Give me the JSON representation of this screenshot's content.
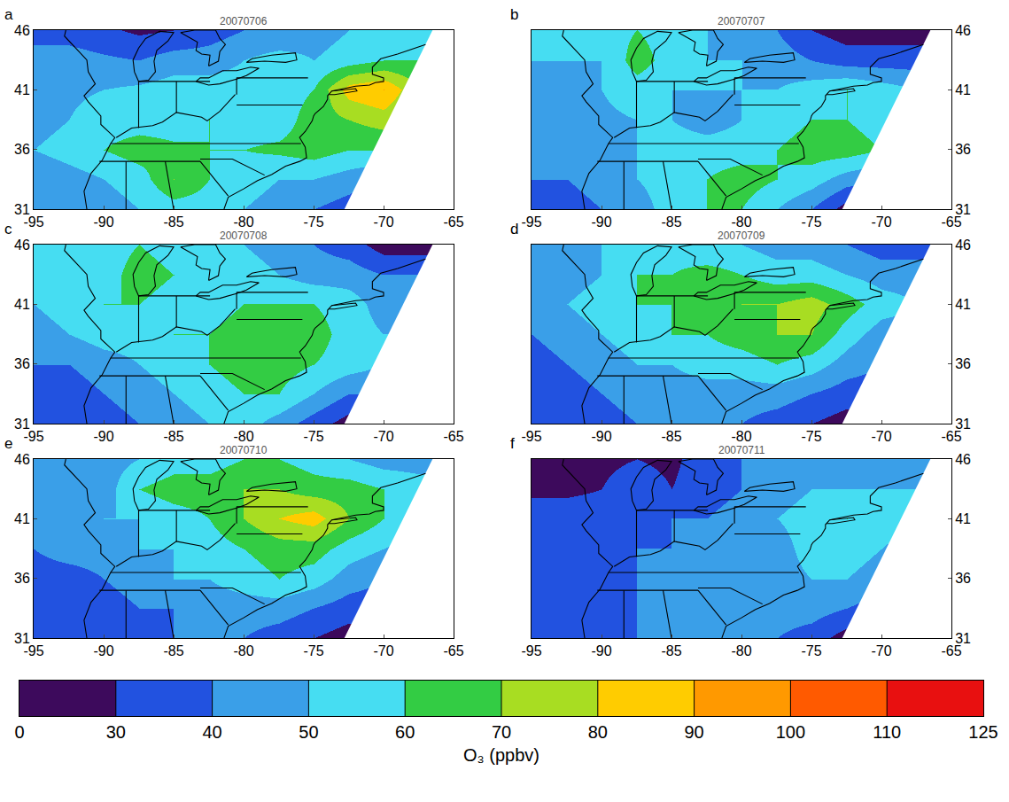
{
  "chart_data": {
    "type": "heatmap",
    "x": [
      -95,
      -92.5,
      -90,
      -87.5,
      -85,
      -82.5,
      -80,
      -77.5,
      -75,
      -72.5,
      -70,
      -67.5,
      -65
    ],
    "y": [
      31,
      33.5,
      36,
      38.5,
      41,
      43.5,
      46
    ],
    "xlim": [
      -95,
      -65
    ],
    "ylim": [
      31,
      46
    ],
    "xticks": [
      -95,
      -90,
      -85,
      -80,
      -75,
      -70,
      -65
    ],
    "yticks": [
      31,
      36,
      41,
      46
    ],
    "panels": [
      {
        "label": "a",
        "title": "20070706",
        "cells": [
          [
            40,
            42,
            45,
            50,
            55,
            55,
            50,
            45,
            40,
            35,
            25,
            25,
            25
          ],
          [
            40,
            45,
            50,
            55,
            70,
            60,
            55,
            50,
            50,
            45,
            40,
            40,
            40
          ],
          [
            50,
            55,
            60,
            65,
            62,
            60,
            60,
            62,
            65,
            60,
            60,
            55,
            50
          ],
          [
            45,
            50,
            55,
            55,
            55,
            60,
            55,
            55,
            65,
            70,
            75,
            65,
            60
          ],
          [
            45,
            48,
            50,
            52,
            55,
            55,
            55,
            55,
            60,
            85,
            90,
            70,
            65
          ],
          [
            45,
            45,
            42,
            40,
            45,
            45,
            50,
            55,
            50,
            55,
            60,
            60,
            60
          ],
          [
            35,
            35,
            32,
            28,
            30,
            35,
            40,
            40,
            45,
            50,
            55,
            55,
            55
          ]
        ]
      },
      {
        "label": "b",
        "title": "20070707",
        "cells": [
          [
            30,
            35,
            40,
            45,
            55,
            60,
            60,
            50,
            40,
            25,
            25,
            25,
            25
          ],
          [
            40,
            40,
            45,
            50,
            55,
            60,
            65,
            60,
            55,
            45,
            40,
            40,
            40
          ],
          [
            40,
            45,
            45,
            50,
            55,
            55,
            55,
            60,
            65,
            65,
            60,
            55,
            55
          ],
          [
            45,
            45,
            48,
            50,
            50,
            45,
            50,
            55,
            60,
            60,
            55,
            55,
            55
          ],
          [
            45,
            48,
            50,
            55,
            50,
            50,
            50,
            50,
            55,
            60,
            55,
            50,
            50
          ],
          [
            50,
            50,
            50,
            65,
            55,
            50,
            50,
            45,
            40,
            35,
            35,
            35,
            35
          ],
          [
            50,
            50,
            55,
            60,
            55,
            50,
            45,
            40,
            30,
            25,
            25,
            25,
            25
          ]
        ]
      },
      {
        "label": "c",
        "title": "20070708",
        "cells": [
          [
            35,
            35,
            35,
            40,
            45,
            50,
            55,
            45,
            35,
            25,
            25,
            25,
            25
          ],
          [
            35,
            35,
            40,
            45,
            50,
            55,
            60,
            60,
            50,
            40,
            40,
            40,
            40
          ],
          [
            40,
            40,
            45,
            50,
            55,
            60,
            65,
            65,
            60,
            55,
            50,
            50,
            50
          ],
          [
            45,
            50,
            55,
            55,
            60,
            60,
            65,
            60,
            65,
            55,
            50,
            50,
            50
          ],
          [
            50,
            55,
            60,
            60,
            55,
            55,
            60,
            60,
            60,
            55,
            45,
            45,
            45
          ],
          [
            50,
            50,
            55,
            65,
            60,
            55,
            55,
            50,
            45,
            45,
            40,
            40,
            40
          ],
          [
            50,
            50,
            55,
            60,
            55,
            50,
            50,
            45,
            40,
            35,
            25,
            25,
            25
          ]
        ]
      },
      {
        "label": "d",
        "title": "20070709",
        "cells": [
          [
            35,
            35,
            35,
            40,
            40,
            40,
            40,
            35,
            30,
            25,
            25,
            25,
            25
          ],
          [
            35,
            35,
            40,
            45,
            45,
            45,
            45,
            45,
            40,
            35,
            35,
            35,
            35
          ],
          [
            35,
            40,
            45,
            50,
            50,
            55,
            55,
            60,
            55,
            45,
            40,
            40,
            40
          ],
          [
            40,
            45,
            50,
            55,
            60,
            60,
            65,
            70,
            70,
            55,
            45,
            45,
            45
          ],
          [
            45,
            50,
            55,
            60,
            60,
            65,
            70,
            70,
            75,
            65,
            55,
            50,
            50
          ],
          [
            45,
            45,
            50,
            60,
            60,
            65,
            60,
            55,
            55,
            50,
            45,
            45,
            45
          ],
          [
            45,
            45,
            50,
            55,
            55,
            50,
            50,
            45,
            45,
            40,
            35,
            35,
            35
          ]
        ]
      },
      {
        "label": "e",
        "title": "20070710",
        "cells": [
          [
            35,
            35,
            35,
            35,
            40,
            40,
            40,
            35,
            30,
            25,
            25,
            25,
            25
          ],
          [
            35,
            35,
            35,
            40,
            40,
            45,
            45,
            45,
            40,
            35,
            35,
            35,
            35
          ],
          [
            35,
            35,
            40,
            45,
            50,
            50,
            55,
            60,
            55,
            45,
            40,
            40,
            40
          ],
          [
            40,
            45,
            45,
            50,
            50,
            55,
            60,
            65,
            65,
            55,
            50,
            45,
            45
          ],
          [
            45,
            45,
            50,
            50,
            55,
            60,
            70,
            80,
            85,
            70,
            60,
            55,
            55
          ],
          [
            45,
            45,
            45,
            60,
            65,
            65,
            70,
            70,
            65,
            65,
            60,
            55,
            55
          ],
          [
            40,
            40,
            45,
            50,
            55,
            55,
            60,
            60,
            55,
            50,
            45,
            45,
            45
          ]
        ]
      },
      {
        "label": "f",
        "title": "20070711",
        "cells": [
          [
            35,
            35,
            38,
            40,
            40,
            40,
            40,
            40,
            35,
            25,
            25,
            25,
            25
          ],
          [
            35,
            35,
            38,
            40,
            45,
            45,
            45,
            45,
            45,
            40,
            35,
            35,
            35
          ],
          [
            35,
            35,
            38,
            40,
            42,
            45,
            45,
            45,
            50,
            50,
            45,
            45,
            45
          ],
          [
            35,
            35,
            38,
            40,
            40,
            42,
            45,
            45,
            55,
            55,
            50,
            45,
            45
          ],
          [
            35,
            35,
            35,
            38,
            40,
            40,
            45,
            50,
            55,
            60,
            55,
            50,
            50
          ],
          [
            28,
            28,
            30,
            35,
            30,
            35,
            40,
            45,
            50,
            50,
            50,
            50,
            50
          ],
          [
            25,
            25,
            28,
            30,
            28,
            35,
            40,
            45,
            45,
            45,
            45,
            45,
            45
          ]
        ]
      }
    ],
    "domain_edge": {
      "lon": [
        -72.8,
        -66.5
      ],
      "lat": [
        31,
        46
      ]
    },
    "colorbar": {
      "levels": [
        0,
        30,
        40,
        50,
        60,
        70,
        80,
        90,
        100,
        110,
        125
      ],
      "colors": [
        "#3d0a5c",
        "#2252e0",
        "#3a9fe8",
        "#46ddf2",
        "#33cc44",
        "#a8dd22",
        "#ffcc00",
        "#ff9900",
        "#ff5a00",
        "#e81010"
      ],
      "label": "O₃ (ppbv)"
    },
    "map_lines": [
      {
        "lon": [
          -81.4,
          -81.1,
          -80,
          -79,
          -78,
          -77,
          -76,
          -75.5,
          -75.6,
          -76,
          -75.6,
          -75.1,
          -75,
          -74.9,
          -74.3,
          -74,
          -74,
          -73.7,
          -72,
          -71,
          -70.6,
          -70,
          -70,
          -70.8,
          -70.8,
          -70.2,
          -69,
          -68,
          -67
        ],
        "lat": [
          31,
          32,
          32.7,
          33.4,
          33.9,
          34.6,
          35,
          35.3,
          36.2,
          37,
          37.5,
          38.4,
          38.8,
          39,
          39.6,
          40.2,
          40.5,
          40.9,
          41.3,
          41.4,
          41.6,
          41.7,
          42,
          42.3,
          42.9,
          43.6,
          44,
          44.4,
          44.8
        ]
      },
      {
        "lon": [
          -73.7,
          -72,
          -71.9,
          -73.5,
          -73.9
        ],
        "lat": [
          40.9,
          41.1,
          40.9,
          40.6,
          40.6
        ]
      },
      {
        "lon": [
          -87.5,
          -87.8,
          -87.9,
          -87.5,
          -87,
          -86,
          -85,
          -85.4,
          -86.2,
          -86.4,
          -86.3,
          -86.8,
          -87.5
        ],
        "lat": [
          41.7,
          42.5,
          43.5,
          44.5,
          45.3,
          45.9,
          45.8,
          45.1,
          44.3,
          43.4,
          42.5,
          41.8,
          41.7
        ]
      },
      {
        "lon": [
          -82.5,
          -82.4,
          -83,
          -83.4,
          -83.3,
          -84.5,
          -83.5,
          -82,
          -81.7,
          -81.3,
          -81.7,
          -81.8,
          -82.5
        ],
        "lat": [
          43,
          43.9,
          44,
          44.3,
          45,
          45.8,
          46,
          46,
          45.3,
          44.8,
          44.2,
          43.4,
          43
        ]
      },
      {
        "lon": [
          -83.4,
          -82.5,
          -81.7,
          -80.5,
          -79.8,
          -78.9,
          -79.5,
          -80.5,
          -81.5,
          -82.5,
          -83.1,
          -83.4
        ],
        "lat": [
          41.7,
          41.4,
          41.5,
          41.9,
          42.2,
          42.8,
          42.9,
          42.6,
          42.6,
          42,
          42,
          41.7
        ]
      },
      {
        "lon": [
          -79.8,
          -78.5,
          -77,
          -76.2,
          -76.3,
          -77,
          -78,
          -79,
          -79.4,
          -79.8
        ],
        "lat": [
          43.3,
          43.4,
          43.3,
          43.5,
          44.1,
          44,
          43.9,
          43.7,
          43.6,
          43.3
        ]
      },
      {
        "lon": [
          -91.2,
          -91.4,
          -90.9,
          -90.1,
          -89.5,
          -89.2,
          -90.2,
          -90.2,
          -91.1,
          -91.4,
          -90.6,
          -91.1,
          -91.2,
          -92,
          -92.8,
          -92.7
        ],
        "lat": [
          31,
          32.5,
          34,
          35.1,
          36.5,
          37,
          38.1,
          38.8,
          40,
          40.5,
          41.5,
          42.5,
          43.5,
          44.5,
          45.5,
          46
        ]
      },
      {
        "lon": [
          -89.1,
          -88,
          -86.5,
          -85.8,
          -84.8,
          -83,
          -82.6,
          -81.7,
          -80.6
        ],
        "lat": [
          37,
          37.8,
          38,
          38.3,
          39.1,
          38.7,
          38.4,
          39.2,
          40.6
        ]
      },
      {
        "lon": [
          -89.5,
          -75.9
        ],
        "lat": [
          36.5,
          36.5
        ]
      },
      {
        "lon": [
          -80.5,
          -75.8
        ],
        "lat": [
          39.72,
          39.72
        ]
      },
      {
        "lon": [
          -80.5,
          -75.4
        ],
        "lat": [
          42,
          42
        ]
      },
      {
        "lon": [
          -80.5,
          -80.5
        ],
        "lat": [
          40.6,
          42
        ]
      },
      {
        "lon": [
          -87.5,
          -87.5
        ],
        "lat": [
          37.8,
          41.7
        ]
      },
      {
        "lon": [
          -84.8,
          -84.8
        ],
        "lat": [
          39.1,
          41.7
        ]
      },
      {
        "lon": [
          -87.5,
          -82.4
        ],
        "lat": [
          41.7,
          41.7
        ]
      },
      {
        "lon": [
          -90.3,
          -83.1
        ],
        "lat": [
          35,
          35
        ]
      },
      {
        "lon": [
          -88.4,
          -88.4
        ],
        "lat": [
          31,
          35
        ]
      },
      {
        "lon": [
          -85,
          -85.6
        ],
        "lat": [
          31,
          35
        ]
      },
      {
        "lon": [
          -83.1,
          -81.1
        ],
        "lat": [
          35,
          32.1
        ]
      },
      {
        "lon": [
          -83.1,
          -80.8,
          -78.5
        ],
        "lat": [
          35.2,
          35.2,
          33.85
        ]
      }
    ]
  }
}
